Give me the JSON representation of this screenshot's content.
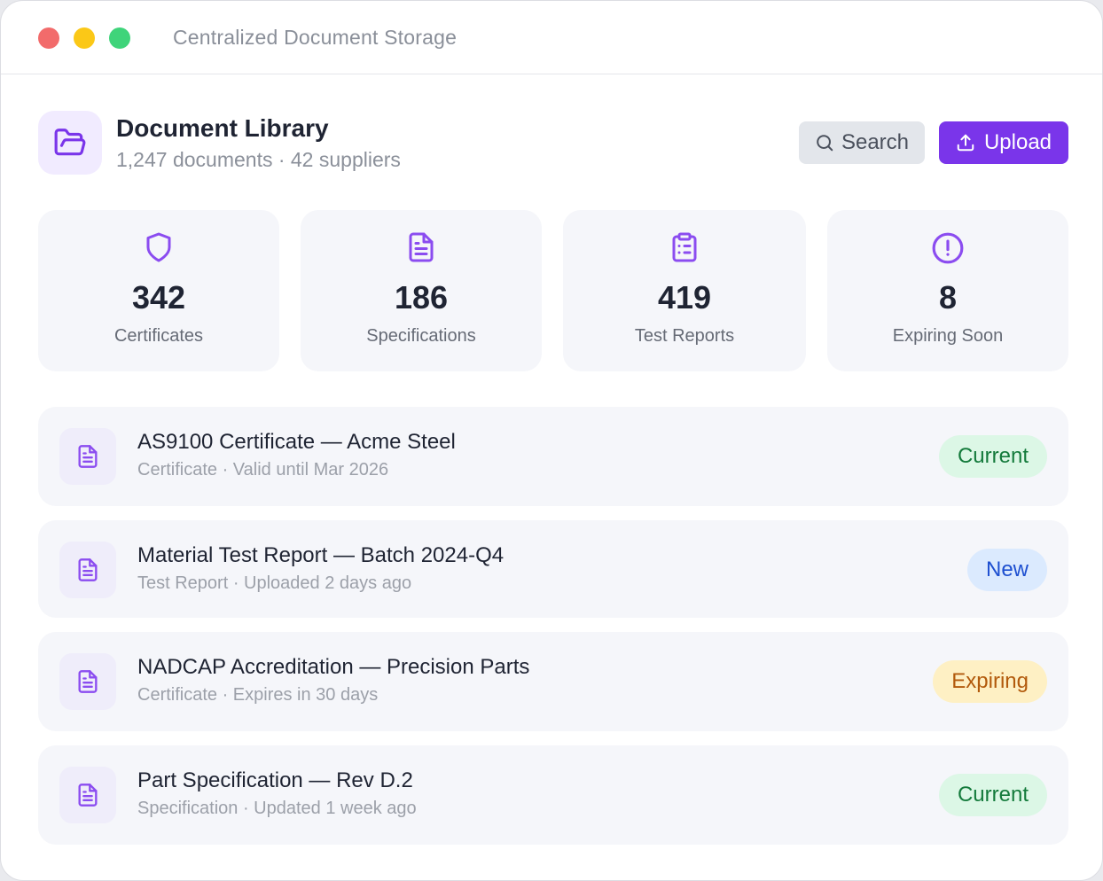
{
  "window": {
    "title": "Centralized Document Storage"
  },
  "header": {
    "title": "Document Library",
    "subtitle": "1,247 documents · 42 suppliers",
    "search_label": "Search",
    "upload_label": "Upload",
    "icon": "folder-open-icon"
  },
  "stats": [
    {
      "icon": "shield-icon",
      "value": "342",
      "label": "Certificates"
    },
    {
      "icon": "document-icon",
      "value": "186",
      "label": "Specifications"
    },
    {
      "icon": "clipboard-icon",
      "value": "419",
      "label": "Test Reports"
    },
    {
      "icon": "alert-circle-icon",
      "value": "8",
      "label": "Expiring Soon"
    }
  ],
  "documents": [
    {
      "title": "AS9100 Certificate — Acme Steel",
      "meta": "Certificate · Valid until Mar 2026",
      "status": "Current",
      "status_type": "current"
    },
    {
      "title": "Material Test Report — Batch 2024-Q4",
      "meta": "Test Report · Uploaded 2 days ago",
      "status": "New",
      "status_type": "new"
    },
    {
      "title": "NADCAP Accreditation — Precision Parts",
      "meta": "Certificate · Expires in 30 days",
      "status": "Expiring",
      "status_type": "expiring"
    },
    {
      "title": "Part Specification — Rev D.2",
      "meta": "Specification · Updated 1 week ago",
      "status": "Current",
      "status_type": "current"
    }
  ],
  "colors": {
    "accent": "#7a35ea",
    "icon": "#8b4cf0",
    "current": "#137a3b",
    "new": "#1d4fd0",
    "expiring": "#b25a0c"
  }
}
